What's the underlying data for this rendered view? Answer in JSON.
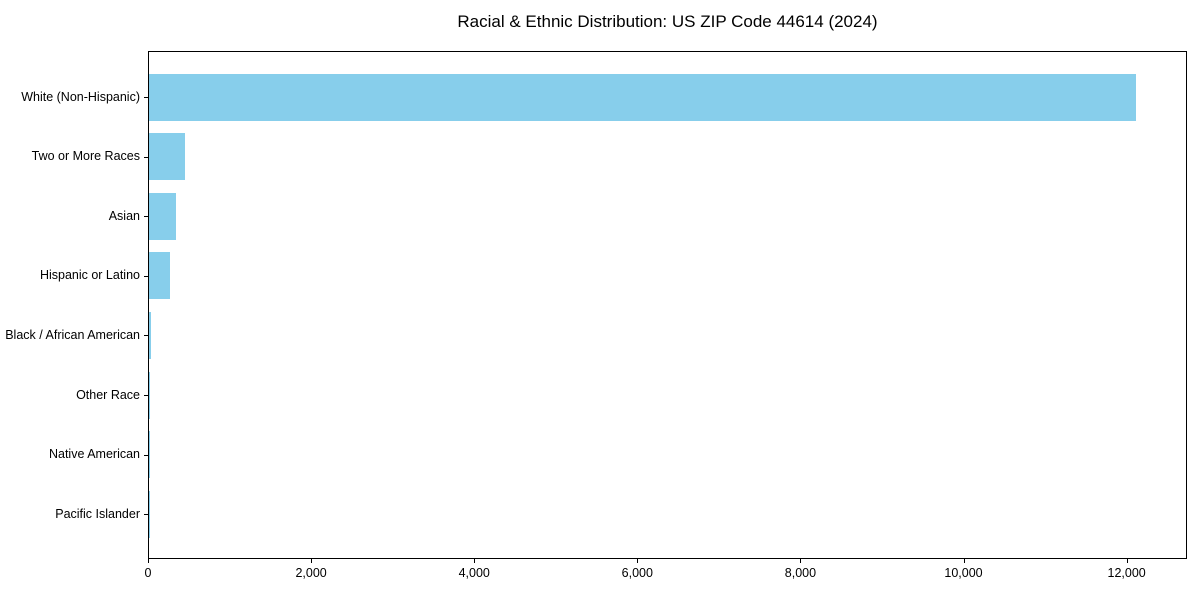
{
  "figure": {
    "background": "#ffffff"
  },
  "chart_data": {
    "type": "bar",
    "orientation": "horizontal",
    "title": "Racial & Ethnic Distribution: US ZIP Code 44614 (2024)",
    "xlabel": "",
    "ylabel": "",
    "categories": [
      "White (Non-Hispanic)",
      "Two or More Races",
      "Asian",
      "Hispanic or Latino",
      "Black / African American",
      "Other Race",
      "Native American",
      "Pacific Islander"
    ],
    "values": [
      12100,
      440,
      330,
      260,
      30,
      15,
      10,
      4
    ],
    "bar_color": "#87CEEB",
    "axis_color": "#000000",
    "xlim": [
      0,
      12740
    ],
    "x_ticks": [
      {
        "value": 0,
        "label": "0"
      },
      {
        "value": 2000,
        "label": "2,000"
      },
      {
        "value": 4000,
        "label": "4,000"
      },
      {
        "value": 6000,
        "label": "6,000"
      },
      {
        "value": 8000,
        "label": "8,000"
      },
      {
        "value": 10000,
        "label": "10,000"
      },
      {
        "value": 12000,
        "label": "12,000"
      }
    ],
    "grid": false,
    "legend": null
  }
}
